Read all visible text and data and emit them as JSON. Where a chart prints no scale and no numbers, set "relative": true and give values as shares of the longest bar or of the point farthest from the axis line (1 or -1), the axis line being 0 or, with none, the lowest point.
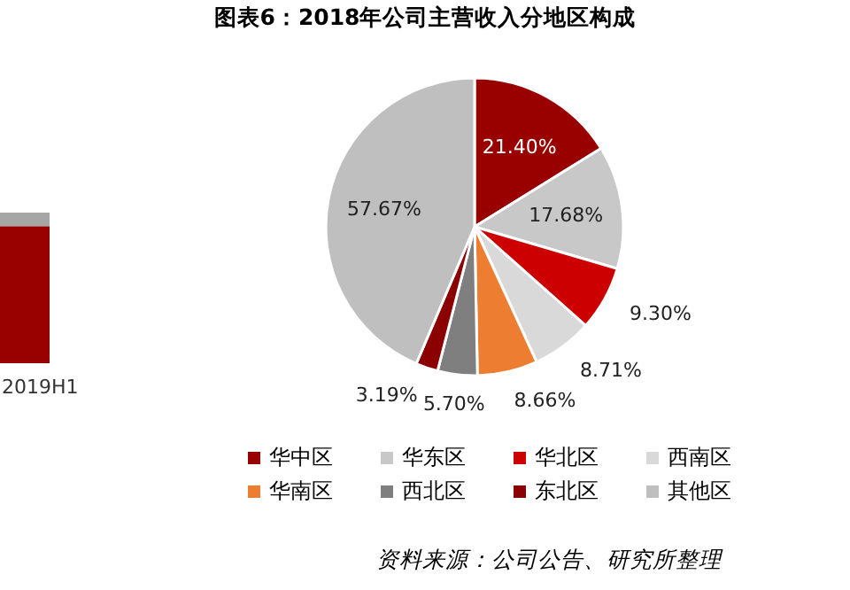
{
  "chart_data": [
    {
      "type": "bar",
      "relative": true,
      "stacked": true,
      "categories": [
        "2019H1"
      ],
      "series": [
        {
          "color": "#990000",
          "values": [
            0.91
          ]
        },
        {
          "color": "#a6a6a6",
          "values": [
            0.09
          ]
        }
      ]
    },
    {
      "type": "pie",
      "title": "图表6：2018年公司主营收入分地区构成",
      "categories": [
        "华中区",
        "华东区",
        "华北区",
        "西南区",
        "华南区",
        "西北区",
        "东北区",
        "其他区"
      ],
      "values": [
        21.4,
        17.68,
        9.3,
        8.71,
        8.66,
        5.7,
        3.19,
        57.67
      ],
      "value_labels": [
        "21.40%",
        "17.68%",
        "9.30%",
        "8.71%",
        "8.66%",
        "5.70%",
        "3.19%",
        "57.67%"
      ],
      "colors": [
        "#990000",
        "#c8c8c8",
        "#cc0000",
        "#d9d9d9",
        "#ed7d31",
        "#7f7f7f",
        "#8b0000",
        "#bfbfbf"
      ],
      "legend": "bottom",
      "annotations": [
        "资料来源：公司公告、研究所整理"
      ]
    }
  ]
}
